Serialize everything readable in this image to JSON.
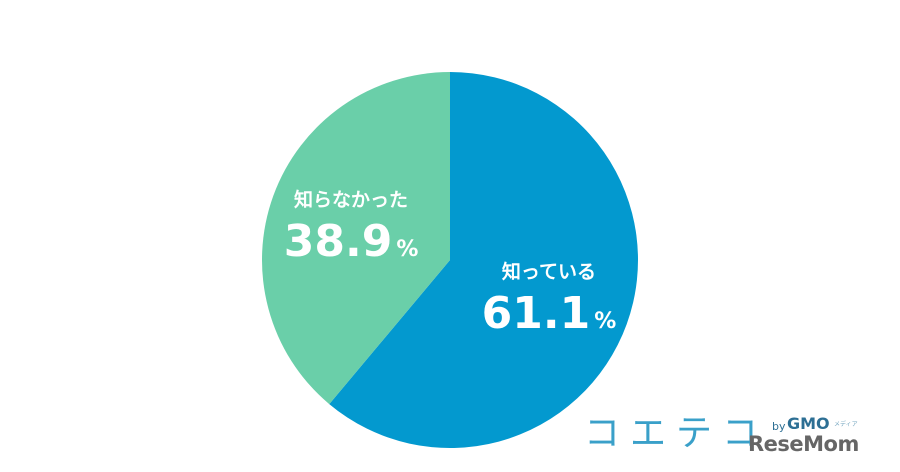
{
  "chart_data": {
    "type": "pie",
    "title": "",
    "start_angle_deg": 0,
    "direction": "clockwise",
    "slices": [
      {
        "label": "知っている",
        "value": 61.1,
        "value_text": "61.1",
        "unit": "%",
        "color": "#0399cf"
      },
      {
        "label": "知らなかった",
        "value": 38.9,
        "value_text": "38.9",
        "unit": "%",
        "color": "#6acfa9"
      }
    ]
  },
  "brand": {
    "name": "コエテコ",
    "by": "by",
    "gmo": "GMO",
    "sub": "メディア",
    "watermark": "ReseMom"
  }
}
